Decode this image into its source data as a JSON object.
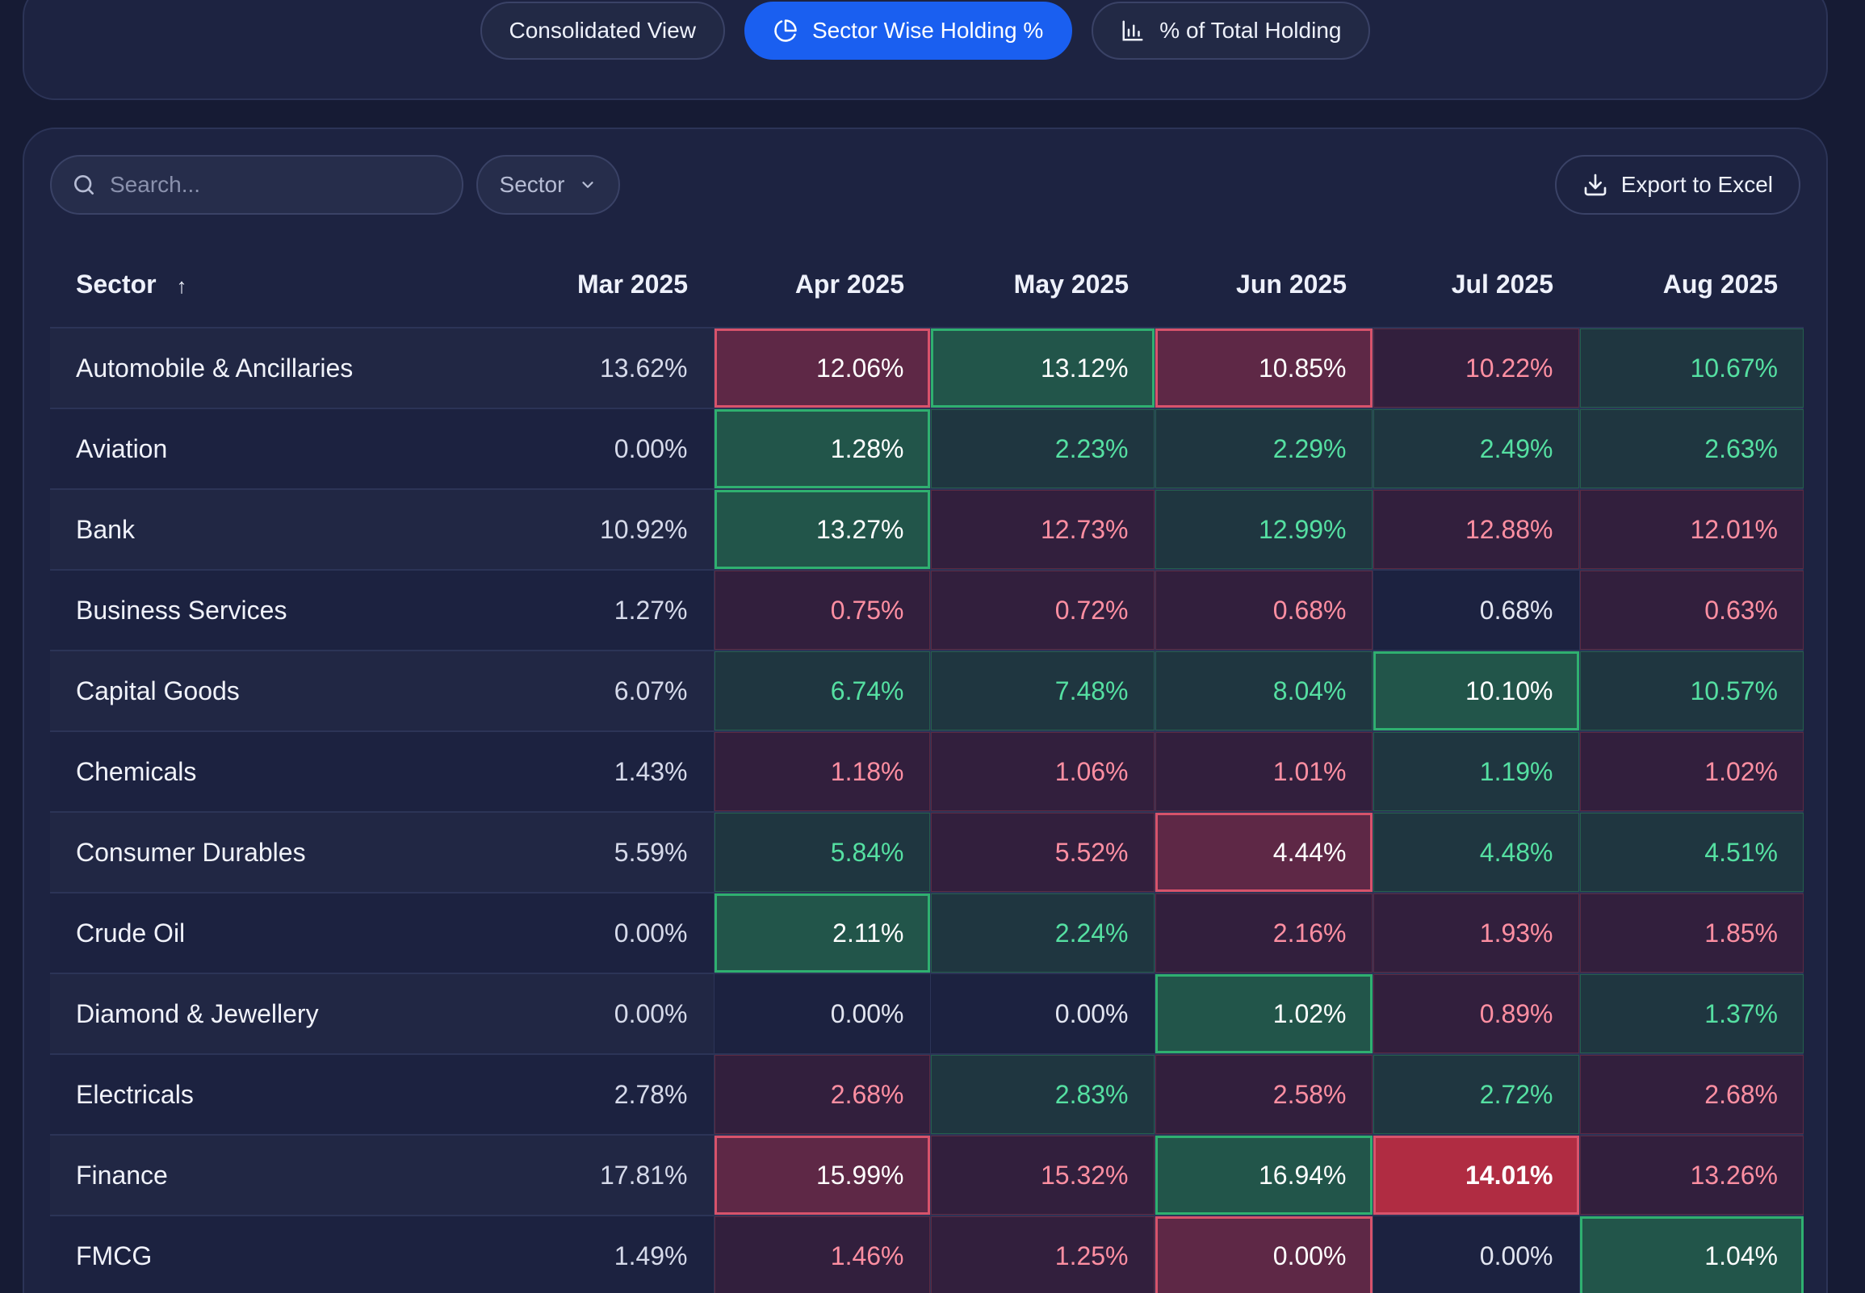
{
  "view_tabs": [
    {
      "label": "Consolidated View",
      "icon": "none",
      "active": false
    },
    {
      "label": "Sector Wise Holding %",
      "icon": "pie-chart-icon",
      "active": true
    },
    {
      "label": "% of Total Holding",
      "icon": "bar-chart-icon",
      "active": false
    }
  ],
  "toolbar": {
    "search_placeholder": "Search...",
    "filter_label": "Sector",
    "export_label": "Export to Excel"
  },
  "colors": {
    "accent": "#1a5ff0",
    "increase": "#55e0a2",
    "decrease": "#ff8fa2",
    "background": "#161b34",
    "panel": "#1d2341"
  },
  "table": {
    "columns": [
      "Sector",
      "Mar 2025",
      "Apr 2025",
      "May 2025",
      "Jun 2025",
      "Jul 2025",
      "Aug 2025"
    ],
    "sort_indicator": "↑",
    "rows": [
      {
        "sector": "Automobile & Ancillaries",
        "values": [
          "13.62%",
          "12.06%",
          "13.12%",
          "10.85%",
          "10.22%",
          "10.67%"
        ],
        "states": [
          "base",
          "down hi",
          "up hi",
          "down hi",
          "down",
          "up"
        ]
      },
      {
        "sector": "Aviation",
        "values": [
          "0.00%",
          "1.28%",
          "2.23%",
          "2.29%",
          "2.49%",
          "2.63%"
        ],
        "states": [
          "base",
          "up hi",
          "up",
          "up",
          "up",
          "up"
        ]
      },
      {
        "sector": "Bank",
        "values": [
          "10.92%",
          "13.27%",
          "12.73%",
          "12.99%",
          "12.88%",
          "12.01%"
        ],
        "states": [
          "base",
          "up hi",
          "down",
          "up",
          "down",
          "down"
        ]
      },
      {
        "sector": "Business Services",
        "values": [
          "1.27%",
          "0.75%",
          "0.72%",
          "0.68%",
          "0.68%",
          "0.63%"
        ],
        "states": [
          "base",
          "down",
          "down",
          "down",
          "same",
          "down"
        ]
      },
      {
        "sector": "Capital Goods",
        "values": [
          "6.07%",
          "6.74%",
          "7.48%",
          "8.04%",
          "10.10%",
          "10.57%"
        ],
        "states": [
          "base",
          "up",
          "up",
          "up",
          "up hi",
          "up"
        ]
      },
      {
        "sector": "Chemicals",
        "values": [
          "1.43%",
          "1.18%",
          "1.06%",
          "1.01%",
          "1.19%",
          "1.02%"
        ],
        "states": [
          "base",
          "down",
          "down",
          "down",
          "up",
          "down"
        ]
      },
      {
        "sector": "Consumer Durables",
        "values": [
          "5.59%",
          "5.84%",
          "5.52%",
          "4.44%",
          "4.48%",
          "4.51%"
        ],
        "states": [
          "base",
          "up",
          "down",
          "down hi",
          "up",
          "up"
        ]
      },
      {
        "sector": "Crude Oil",
        "values": [
          "0.00%",
          "2.11%",
          "2.24%",
          "2.16%",
          "1.93%",
          "1.85%"
        ],
        "states": [
          "base",
          "up hi",
          "up",
          "down",
          "down",
          "down"
        ]
      },
      {
        "sector": "Diamond & Jewellery",
        "values": [
          "0.00%",
          "0.00%",
          "0.00%",
          "1.02%",
          "0.89%",
          "1.37%"
        ],
        "states": [
          "base",
          "same",
          "same",
          "up hi",
          "down",
          "up"
        ]
      },
      {
        "sector": "Electricals",
        "values": [
          "2.78%",
          "2.68%",
          "2.83%",
          "2.58%",
          "2.72%",
          "2.68%"
        ],
        "states": [
          "base",
          "down",
          "up",
          "down",
          "up",
          "down"
        ]
      },
      {
        "sector": "Finance",
        "values": [
          "17.81%",
          "15.99%",
          "15.32%",
          "16.94%",
          "14.01%",
          "13.26%"
        ],
        "states": [
          "base",
          "down hi",
          "down",
          "up hi",
          "down max",
          "down"
        ]
      },
      {
        "sector": "FMCG",
        "values": [
          "1.49%",
          "1.46%",
          "1.25%",
          "0.00%",
          "0.00%",
          "1.04%"
        ],
        "states": [
          "base",
          "down",
          "down",
          "down hi",
          "same",
          "up hi"
        ]
      }
    ]
  }
}
